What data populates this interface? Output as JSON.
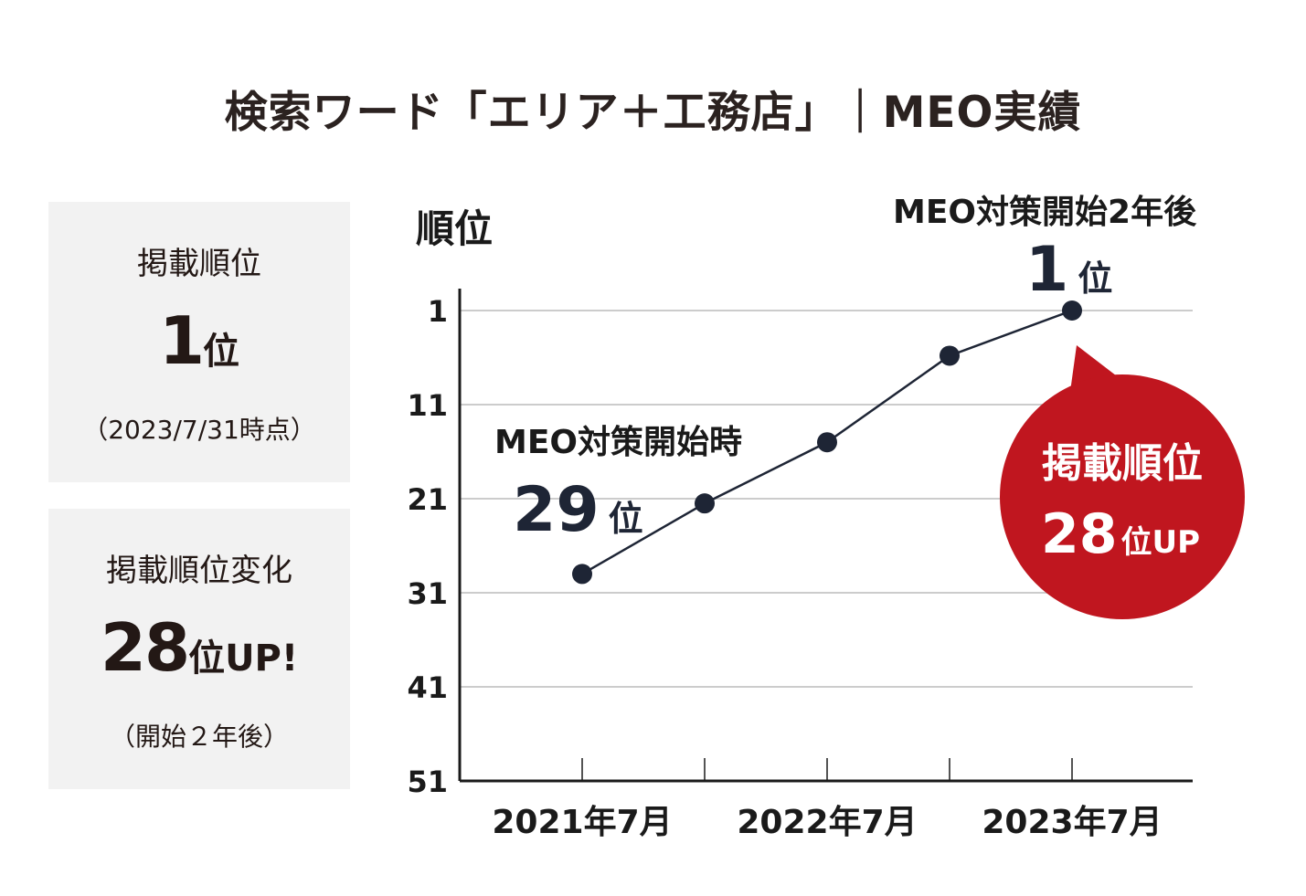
{
  "title": "検索ワード「エリア＋工務店」｜MEO実績",
  "summary": {
    "rank_card": {
      "label": "掲載順位",
      "value": "1",
      "unit": "位",
      "note": "（2023/7/31時点）"
    },
    "change_card": {
      "label": "掲載順位変化",
      "value": "28",
      "unit": "位",
      "suffix": "UP!",
      "note": "（開始２年後）"
    }
  },
  "annotations": {
    "start_label": "MEO対策開始時",
    "start_value": "29",
    "start_unit": "位",
    "end_label": "MEO対策開始2年後",
    "end_value": "1",
    "end_unit": "位",
    "bubble_line1": "掲載順位",
    "bubble_value": "28",
    "bubble_unit": "位UP"
  },
  "colors": {
    "line": "#1e2535",
    "bubble": "#c0161f",
    "grid": "#cccccc",
    "card_bg": "#f2f2f2"
  },
  "chart_data": {
    "type": "line",
    "title": "",
    "ylabel": "順位",
    "xlabel": "",
    "y_inverted": true,
    "ylim": [
      51,
      1
    ],
    "yticks": [
      1,
      11,
      21,
      31,
      41,
      51
    ],
    "x_tick_labels": [
      {
        "index": 0,
        "label": "2021年7月"
      },
      {
        "index": 2,
        "label": "2022年7月"
      },
      {
        "index": 4,
        "label": "2023年7月"
      }
    ],
    "x": [
      0,
      1,
      2,
      3,
      4
    ],
    "series": [
      {
        "name": "掲載順位",
        "values": [
          29,
          21.5,
          15,
          5.8,
          1
        ]
      }
    ]
  }
}
